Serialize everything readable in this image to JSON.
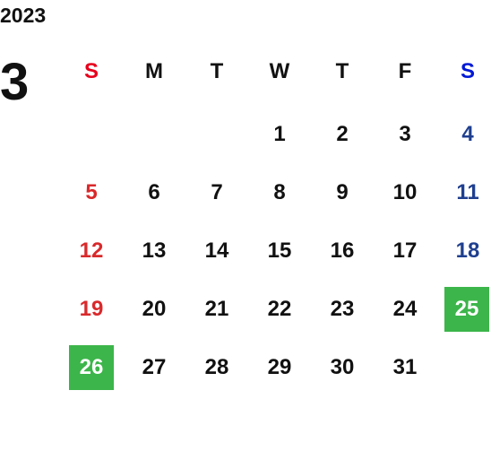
{
  "year": "2023",
  "month": "3",
  "weekdays": [
    "S",
    "M",
    "T",
    "W",
    "T",
    "F",
    "S"
  ],
  "weekday_colors": [
    "#e8001c",
    "#111111",
    "#111111",
    "#111111",
    "#111111",
    "#111111",
    "#0019d6"
  ],
  "day_colors": [
    "#d9292b",
    "#111111",
    "#111111",
    "#111111",
    "#111111",
    "#111111",
    "#1f3f8f"
  ],
  "highlight_color": "#3cb54a",
  "weeks": [
    [
      null,
      null,
      null,
      {
        "day": 1
      },
      {
        "day": 2
      },
      {
        "day": 3
      },
      {
        "day": 4
      }
    ],
    [
      {
        "day": 5
      },
      {
        "day": 6
      },
      {
        "day": 7
      },
      {
        "day": 8
      },
      {
        "day": 9
      },
      {
        "day": 10
      },
      {
        "day": 11
      }
    ],
    [
      {
        "day": 12
      },
      {
        "day": 13
      },
      {
        "day": 14
      },
      {
        "day": 15
      },
      {
        "day": 16
      },
      {
        "day": 17
      },
      {
        "day": 18
      }
    ],
    [
      {
        "day": 19
      },
      {
        "day": 20
      },
      {
        "day": 21
      },
      {
        "day": 22
      },
      {
        "day": 23
      },
      {
        "day": 24
      },
      {
        "day": 25,
        "highlighted": true
      }
    ],
    [
      {
        "day": 26,
        "highlighted": true
      },
      {
        "day": 27
      },
      {
        "day": 28
      },
      {
        "day": 29
      },
      {
        "day": 30
      },
      {
        "day": 31
      },
      null
    ]
  ]
}
